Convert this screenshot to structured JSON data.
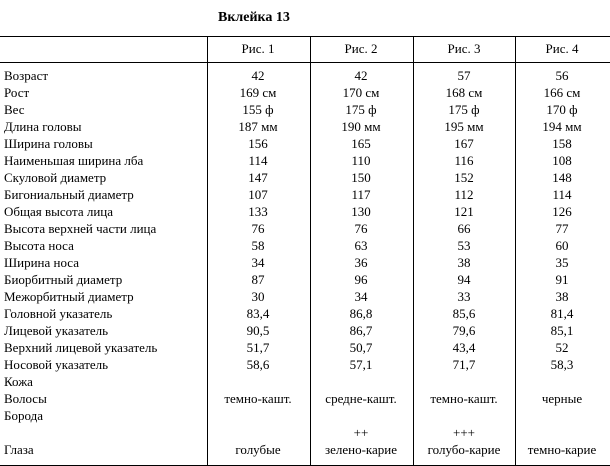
{
  "header": {
    "title": "Вклейка 13"
  },
  "table": {
    "columns": [
      "Рис. 1",
      "Рис. 2",
      "Рис. 3",
      "Рис. 4"
    ],
    "rows": [
      [
        "Возраст",
        "42",
        "42",
        "57",
        "56"
      ],
      [
        "Рост",
        "169 см",
        "170 см",
        "168 см",
        "166 см"
      ],
      [
        "Вес",
        "155 ф",
        "175 ф",
        "175 ф",
        "170 ф"
      ],
      [
        "Длина головы",
        "187 мм",
        "190 мм",
        "195 мм",
        "194 мм"
      ],
      [
        "Ширина головы",
        "156",
        "165",
        "167",
        "158"
      ],
      [
        "Наименьшая ширина лба",
        "114",
        "110",
        "116",
        "108"
      ],
      [
        "Скуловой диаметр",
        "147",
        "150",
        "152",
        "148"
      ],
      [
        "Бигониальный диаметр",
        "107",
        "117",
        "112",
        "114"
      ],
      [
        "Общая высота лица",
        "133",
        "130",
        "121",
        "126"
      ],
      [
        "Высота верхней части лица",
        "76",
        "76",
        "66",
        "77"
      ],
      [
        "Высота носа",
        "58",
        "63",
        "53",
        "60"
      ],
      [
        "Ширина носа",
        "34",
        "36",
        "38",
        "35"
      ],
      [
        "Биорбитный диаметр",
        "87",
        "96",
        "94",
        "91"
      ],
      [
        "Межорбитный диаметр",
        "30",
        "34",
        "33",
        "38"
      ],
      [
        "Головной указатель",
        "83,4",
        "86,8",
        "85,6",
        "81,4"
      ],
      [
        "Лицевой указатель",
        "90,5",
        "86,7",
        "79,6",
        "85,1"
      ],
      [
        "Верхний лицевой указатель",
        "51,7",
        "50,7",
        "43,4",
        "52"
      ],
      [
        "Носовой указатель",
        "58,6",
        "57,1",
        "71,7",
        "58,3"
      ],
      [
        "Кожа",
        null,
        null,
        null,
        null
      ],
      [
        "Волосы",
        "темно-кашт.",
        "средне-кашт.",
        "темно-кашт.",
        "черные"
      ],
      [
        "Борода",
        null,
        null,
        null,
        null
      ],
      [
        null,
        null,
        "++",
        "+++",
        null
      ],
      [
        "Глаза",
        "голубые",
        "зелено-карие",
        "голубо-карие",
        "темно-карие"
      ]
    ]
  }
}
